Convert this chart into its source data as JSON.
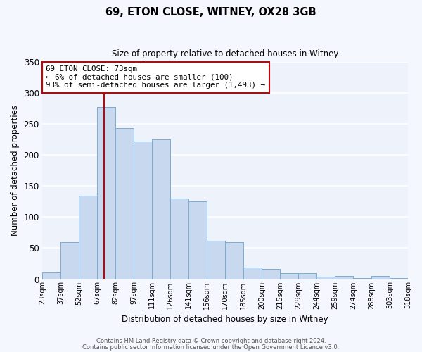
{
  "title": "69, ETON CLOSE, WITNEY, OX28 3GB",
  "subtitle": "Size of property relative to detached houses in Witney",
  "xlabel": "Distribution of detached houses by size in Witney",
  "ylabel": "Number of detached properties",
  "categories": [
    "23sqm",
    "37sqm",
    "52sqm",
    "67sqm",
    "82sqm",
    "97sqm",
    "111sqm",
    "126sqm",
    "141sqm",
    "156sqm",
    "170sqm",
    "185sqm",
    "200sqm",
    "215sqm",
    "229sqm",
    "244sqm",
    "259sqm",
    "274sqm",
    "288sqm",
    "303sqm",
    "318sqm"
  ],
  "values": [
    11,
    60,
    135,
    278,
    244,
    222,
    225,
    130,
    125,
    62,
    60,
    19,
    16,
    10,
    10,
    4,
    5,
    2,
    5,
    2
  ],
  "bar_color": "#c8d8ee",
  "bar_edge_color": "#7aadd4",
  "plot_bg_color": "#eef2fb",
  "fig_bg_color": "#f5f7ff",
  "grid_color": "#ffffff",
  "ylim": [
    0,
    350
  ],
  "yticks": [
    0,
    50,
    100,
    150,
    200,
    250,
    300,
    350
  ],
  "vline_color": "#cc0000",
  "annotation_title": "69 ETON CLOSE: 73sqm",
  "annotation_line1": "← 6% of detached houses are smaller (100)",
  "annotation_line2": "93% of semi-detached houses are larger (1,493) →",
  "annotation_box_color": "#cc0000",
  "footer_line1": "Contains HM Land Registry data © Crown copyright and database right 2024.",
  "footer_line2": "Contains public sector information licensed under the Open Government Licence v3.0."
}
